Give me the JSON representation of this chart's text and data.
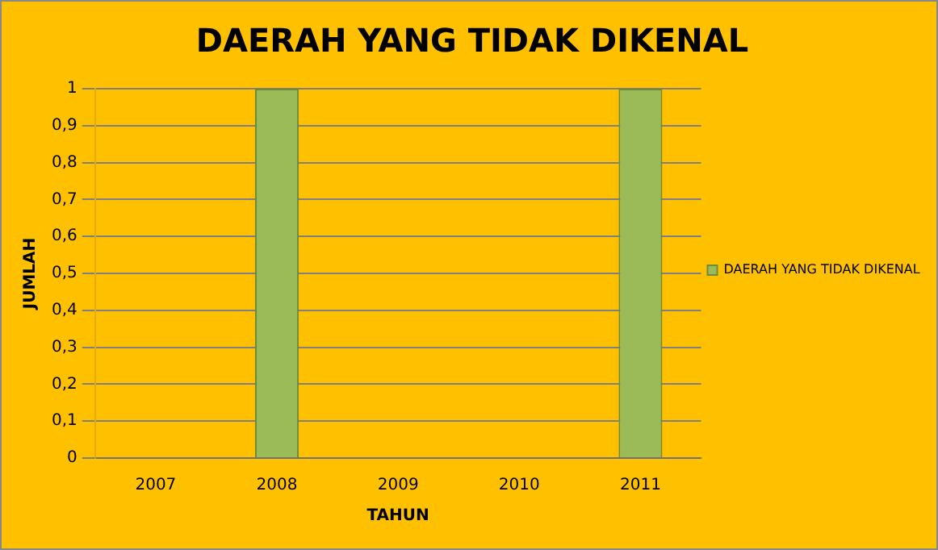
{
  "chart_data": {
    "type": "bar",
    "title": "DAERAH YANG TIDAK DIKENAL",
    "xlabel": "TAHUN",
    "ylabel": "JUMLAH",
    "categories": [
      "2007",
      "2008",
      "2009",
      "2010",
      "2011"
    ],
    "series": [
      {
        "name": "DAERAH YANG TIDAK DIKENAL",
        "color": "#9bbb59",
        "values": [
          0,
          1,
          0,
          0,
          1
        ]
      }
    ],
    "ylim": [
      0,
      1
    ],
    "yticks": [
      0,
      {
        "value": 0.1,
        "label": "0,1"
      },
      {
        "value": 0.2,
        "label": "0,2"
      },
      {
        "value": 0.3,
        "label": "0,3"
      },
      {
        "value": 0.4,
        "label": "0,4"
      },
      {
        "value": 0.5,
        "label": "0,5"
      },
      {
        "value": 0.6,
        "label": "0,6"
      },
      {
        "value": 0.7,
        "label": "0,7"
      },
      {
        "value": 0.8,
        "label": "0,8"
      },
      {
        "value": 0.9,
        "label": "0,9"
      },
      1
    ],
    "grid": "y",
    "legend": "right"
  }
}
